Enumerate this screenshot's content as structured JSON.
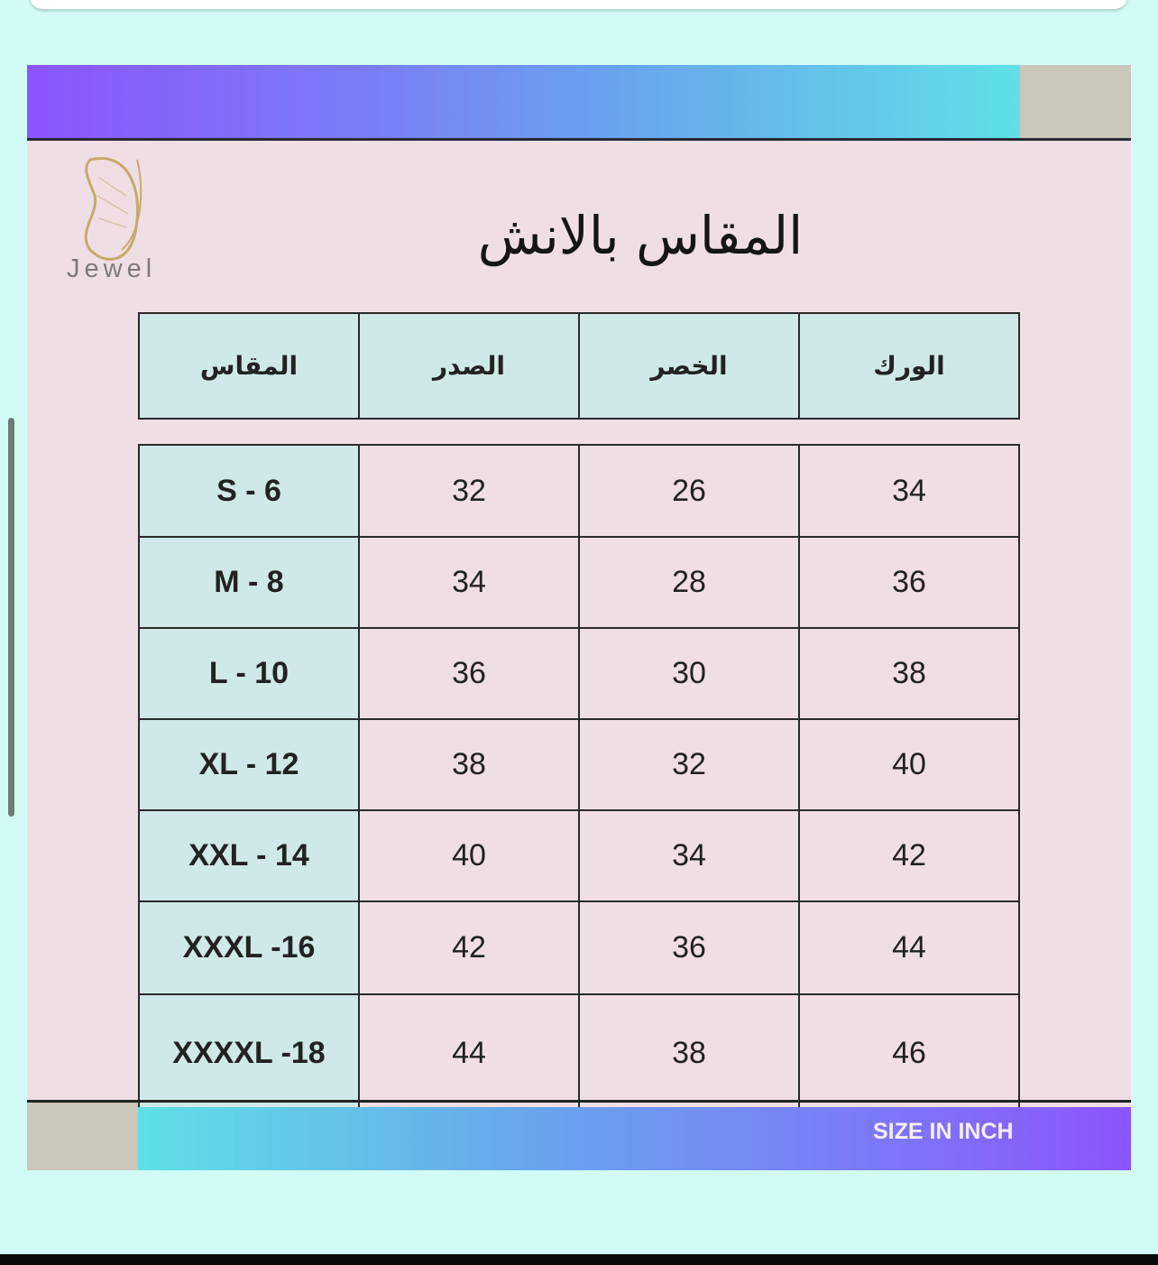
{
  "brand": {
    "name": "Jewel",
    "logo_color": "#c9a96a"
  },
  "title": "المقاس بالانش",
  "footer_label": "SIZE IN INCH",
  "colors": {
    "gradient_start": "#8b55fd",
    "gradient_end": "#5fe0e6",
    "header_bg": "#cfe8e8",
    "body_bg": "#efdfe5"
  },
  "table": {
    "headers": [
      "المقاس",
      "الصدر",
      "الخصر",
      "الورك"
    ],
    "rows": [
      [
        "S - 6",
        "32",
        "26",
        "34"
      ],
      [
        "M - 8",
        "34",
        "28",
        "36"
      ],
      [
        "L - 10",
        "36",
        "30",
        "38"
      ],
      [
        "XL - 12",
        "38",
        "32",
        "40"
      ],
      [
        "XXL - 14",
        "40",
        "34",
        "42"
      ],
      [
        "XXXL -16",
        "42",
        "36",
        "44"
      ],
      [
        "XXXXL -18",
        "44",
        "38",
        "46"
      ]
    ]
  }
}
